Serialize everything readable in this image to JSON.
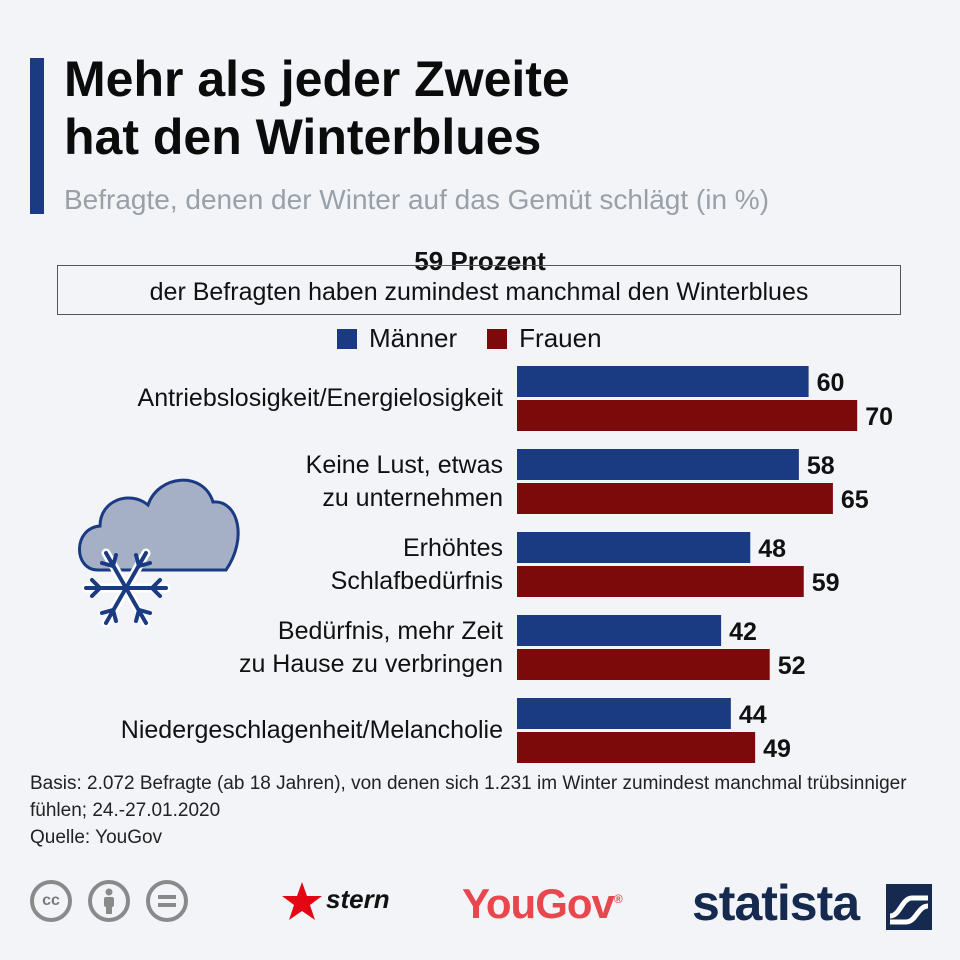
{
  "title_line1": "Mehr als jeder Zweite",
  "title_line2": "hat den Winterblues",
  "subtitle": "Befragte, denen der Winter auf das Gemüt schlägt (in %)",
  "callout": {
    "headline": "59 Prozent",
    "text": "der Befragten haben zumindest manchmal den Winterblues"
  },
  "colors": {
    "accent": "#1a3a82",
    "maenner": "#1a3a82",
    "frauen": "#7d0a0a"
  },
  "chart_data": {
    "type": "bar",
    "orientation": "horizontal",
    "categories": [
      [
        "Antriebslosigkeit/Energielosigkeit"
      ],
      [
        "Keine Lust, etwas",
        "zu unternehmen"
      ],
      [
        "Erhöhtes",
        "Schlafbedürfnis"
      ],
      [
        "Bedürfnis, mehr Zeit",
        "zu Hause zu verbringen"
      ],
      [
        "Niedergeschlagenheit/Melancholie"
      ]
    ],
    "series": [
      {
        "name": "Männer",
        "values": [
          60,
          58,
          48,
          42,
          44
        ]
      },
      {
        "name": "Frauen",
        "values": [
          70,
          65,
          59,
          52,
          49
        ]
      }
    ],
    "unit": "%",
    "xlim": [
      0,
      100
    ]
  },
  "footnote": {
    "basis": "Basis: 2.072 Befragte (ab 18 Jahren), von denen sich 1.231 im Winter zumindest manchmal trübsinniger fühlen; 24.-27.01.2020",
    "source": "Quelle: YouGov"
  },
  "logos": {
    "stern": "stern",
    "yougov": "YouGov",
    "statista": "statista"
  },
  "icons": [
    "cloud-snow-icon",
    "cc-icon",
    "by-icon",
    "nd-icon"
  ]
}
